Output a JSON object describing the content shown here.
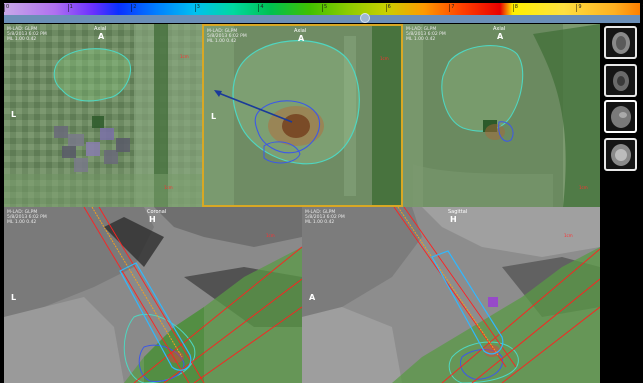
{
  "colorbar": {
    "tick_labels": [
      "0",
      "1",
      "2",
      "3",
      "4",
      "5",
      "6",
      "7",
      "8",
      "9",
      "10"
    ]
  },
  "views": [
    {
      "id": "axial-1",
      "title": "Axial",
      "top": "A",
      "left": "L",
      "info": [
        "M-LAD: GLPM",
        "5/8/2013 6:02 PM",
        "ML 1.00 0.42"
      ]
    },
    {
      "id": "axial-2",
      "title": "Axial",
      "top": "A",
      "left": "L",
      "info": [
        "M-LAD: GLPM",
        "5/8/2013 6:02 PM",
        "ML 1.00 0.42"
      ]
    },
    {
      "id": "axial-3",
      "title": "Axial",
      "top": "A",
      "left": "",
      "info": [
        "M-LAD: GLPM",
        "5/8/2013 6:02 PM",
        "ML 1.00 0.42"
      ]
    },
    {
      "id": "coronal",
      "title": "Coronal",
      "top": "H",
      "left": "L",
      "info": [
        "M-LAD: GLPM",
        "5/8/2013 6:02 PM",
        "ML 1.00 0.42"
      ]
    },
    {
      "id": "sagittal",
      "title": "Sagittal",
      "top": "H",
      "left": "A",
      "info": [
        "M-LAD: GLPM",
        "5/8/2013 6:02 PM",
        "ML 1.00 0.42"
      ]
    }
  ],
  "thumbnails": [
    {
      "name": "thumbnail-series-1",
      "selected": false
    },
    {
      "name": "thumbnail-series-2",
      "selected": false
    },
    {
      "name": "thumbnail-series-3",
      "selected": true
    },
    {
      "name": "thumbnail-series-4",
      "selected": false
    }
  ],
  "colors": {
    "contour": "#4fd6c0",
    "applicator_outline": "#30b8ff",
    "applicator_core": "#f0a020",
    "trajectory": "#ff2020",
    "target_contour": "#3c58e8",
    "active_view_border": "#d8a824",
    "overlay_green": "#5a9a46"
  }
}
